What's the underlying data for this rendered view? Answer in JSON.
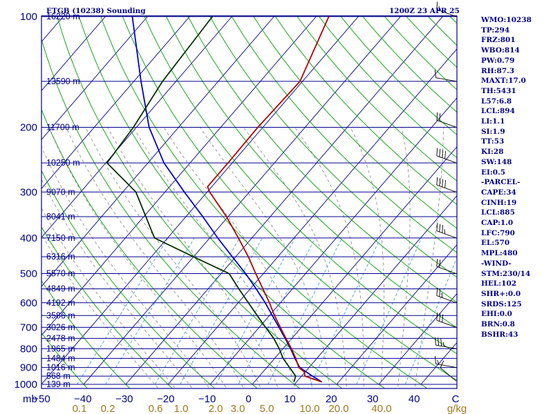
{
  "title_left": "ETGB (10238) Sounding",
  "title_right": "1200Z 23 APR 25",
  "indices": [
    "WMO:10238",
    "TP:294",
    "FRZ:801",
    "WBO:814",
    "PW:0.79",
    "RH:87.3",
    "MAXT:17.0",
    "TH:5431",
    "L57:6.8",
    "LCL:894",
    "LI:1.1",
    "SI:1.9",
    "TT:53",
    "KI:28",
    "SW:148",
    "EI:0.5",
    "-PARCEL-",
    "CAPE:34",
    "CINH:19",
    "LCL:885",
    "CAP:1.0",
    "LFC:790",
    "EL:570",
    "MPL:480",
    "-WIND-",
    "STM:230/14",
    "HEL:102",
    "SHR+:0.0",
    "SRDS:125",
    "EHI:0.0",
    "BRN:0.8",
    "BSHR:43"
  ],
  "colors": {
    "frame": "#00008b",
    "isobar": "#00008b",
    "isotherm": "#00008b",
    "dry_adiabat": "#00a000",
    "moist_adiabat": "#808080",
    "mixing_ratio": "#40a0e0",
    "temperature": "#b00000",
    "dewpoint": "#003000",
    "parcel": "#0000cc",
    "axis_text": "#00008b",
    "mixing_text": "#a07820",
    "wind": "#000000"
  },
  "chart_data": {
    "type": "skew-t",
    "xlabel_unit": "mb",
    "mixing_unit": "g/kg",
    "ylim": [
      1000,
      100
    ],
    "xlim": [
      -50,
      50
    ],
    "pressure_ticks": [
      {
        "p": 100,
        "label": "100",
        "height": "16220 m"
      },
      {
        "p": 150,
        "label": "",
        "height": "13590 m"
      },
      {
        "p": 200,
        "label": "200",
        "height": "11700 m"
      },
      {
        "p": 250,
        "label": "",
        "height": "10250 m"
      },
      {
        "p": 300,
        "label": "300",
        "height": "9070 m"
      },
      {
        "p": 350,
        "label": "",
        "height": "8041 m"
      },
      {
        "p": 400,
        "label": "400",
        "height": "7150 m"
      },
      {
        "p": 450,
        "label": "",
        "height": "6316 m"
      },
      {
        "p": 500,
        "label": "500",
        "height": "5570 m"
      },
      {
        "p": 550,
        "label": "",
        "height": "4849 m"
      },
      {
        "p": 600,
        "label": "600",
        "height": "4192 m"
      },
      {
        "p": 650,
        "label": "",
        "height": "3586 m"
      },
      {
        "p": 700,
        "label": "700",
        "height": "3026 m"
      },
      {
        "p": 750,
        "label": "",
        "height": "2478 m"
      },
      {
        "p": 800,
        "label": "800",
        "height": "1965 m"
      },
      {
        "p": 850,
        "label": "",
        "height": "1484 m"
      },
      {
        "p": 900,
        "label": "900",
        "height": "1016 m"
      },
      {
        "p": 950,
        "label": "",
        "height": "568 m"
      },
      {
        "p": 1000,
        "label": "1000",
        "height": "139 m"
      }
    ],
    "temp_ticks": [
      "-50",
      "-40",
      "-30",
      "-20",
      "-10",
      "0",
      "10",
      "20",
      "30",
      "40",
      "C"
    ],
    "mixing_ratio_labels": [
      "0.1",
      "0.2",
      "0.6",
      "1.0",
      "2.0",
      "3.0",
      "5.0",
      "10.0",
      "20.0",
      "40.0",
      "g/kg"
    ],
    "temperature": [
      {
        "p": 985,
        "t": 16.0
      },
      {
        "p": 950,
        "t": 10.8
      },
      {
        "p": 925,
        "t": 9.8
      },
      {
        "p": 900,
        "t": 7.6
      },
      {
        "p": 850,
        "t": 5.0
      },
      {
        "p": 800,
        "t": 2.0
      },
      {
        "p": 750,
        "t": -1.4
      },
      {
        "p": 700,
        "t": -5.0
      },
      {
        "p": 650,
        "t": -8.8
      },
      {
        "p": 600,
        "t": -12.6
      },
      {
        "p": 550,
        "t": -17.0
      },
      {
        "p": 500,
        "t": -21.8
      },
      {
        "p": 450,
        "t": -27.0
      },
      {
        "p": 400,
        "t": -33.2
      },
      {
        "p": 350,
        "t": -40.4
      },
      {
        "p": 300,
        "t": -49.4
      },
      {
        "p": 290,
        "t": -51.0
      },
      {
        "p": 250,
        "t": -51.0
      },
      {
        "p": 200,
        "t": -51.2
      },
      {
        "p": 150,
        "t": -50.6
      },
      {
        "p": 100,
        "t": -57.0
      }
    ],
    "dewpoint": [
      {
        "p": 985,
        "t": 9.4
      },
      {
        "p": 950,
        "t": 8.6
      },
      {
        "p": 900,
        "t": 5.4
      },
      {
        "p": 850,
        "t": 2.0
      },
      {
        "p": 800,
        "t": -0.9
      },
      {
        "p": 750,
        "t": -4.3
      },
      {
        "p": 700,
        "t": -8.5
      },
      {
        "p": 650,
        "t": -12.9
      },
      {
        "p": 600,
        "t": -17.6
      },
      {
        "p": 550,
        "t": -22.7
      },
      {
        "p": 500,
        "t": -28.1
      },
      {
        "p": 450,
        "t": -40.0
      },
      {
        "p": 400,
        "t": -53.1
      },
      {
        "p": 350,
        "t": -59.5
      },
      {
        "p": 300,
        "t": -66.9
      },
      {
        "p": 250,
        "t": -79.7
      },
      {
        "p": 200,
        "t": -80.7
      },
      {
        "p": 150,
        "t": -83.2
      },
      {
        "p": 100,
        "t": -84.6
      }
    ],
    "parcel": [
      {
        "p": 985,
        "t": 16.0
      },
      {
        "p": 950,
        "t": 12.6
      },
      {
        "p": 900,
        "t": 7.8
      },
      {
        "p": 850,
        "t": 4.8
      },
      {
        "p": 800,
        "t": 1.8
      },
      {
        "p": 750,
        "t": -1.6
      },
      {
        "p": 700,
        "t": -5.3
      },
      {
        "p": 650,
        "t": -9.3
      },
      {
        "p": 600,
        "t": -13.6
      },
      {
        "p": 550,
        "t": -18.6
      },
      {
        "p": 500,
        "t": -24.2
      },
      {
        "p": 450,
        "t": -30.8
      },
      {
        "p": 400,
        "t": -38.1
      },
      {
        "p": 350,
        "t": -46.0
      },
      {
        "p": 300,
        "t": -55.4
      },
      {
        "p": 250,
        "t": -66.2
      },
      {
        "p": 200,
        "t": -77.0
      },
      {
        "p": 150,
        "t": -88.3
      },
      {
        "p": 100,
        "t": -103.6
      }
    ],
    "wind_barbs": [
      {
        "p": 980,
        "dir": 230,
        "kt": 10
      },
      {
        "p": 900,
        "dir": 260,
        "kt": 15
      },
      {
        "p": 800,
        "dir": 260,
        "kt": 35
      },
      {
        "p": 700,
        "dir": 250,
        "kt": 30
      },
      {
        "p": 600,
        "dir": 250,
        "kt": 25
      },
      {
        "p": 500,
        "dir": 250,
        "kt": 20
      },
      {
        "p": 400,
        "dir": 250,
        "kt": 35
      },
      {
        "p": 300,
        "dir": 250,
        "kt": 40
      },
      {
        "p": 250,
        "dir": 250,
        "kt": 40
      },
      {
        "p": 200,
        "dir": 250,
        "kt": 20
      },
      {
        "p": 150,
        "dir": 260,
        "kt": 10
      },
      {
        "p": 100,
        "dir": 250,
        "kt": 15
      }
    ]
  }
}
